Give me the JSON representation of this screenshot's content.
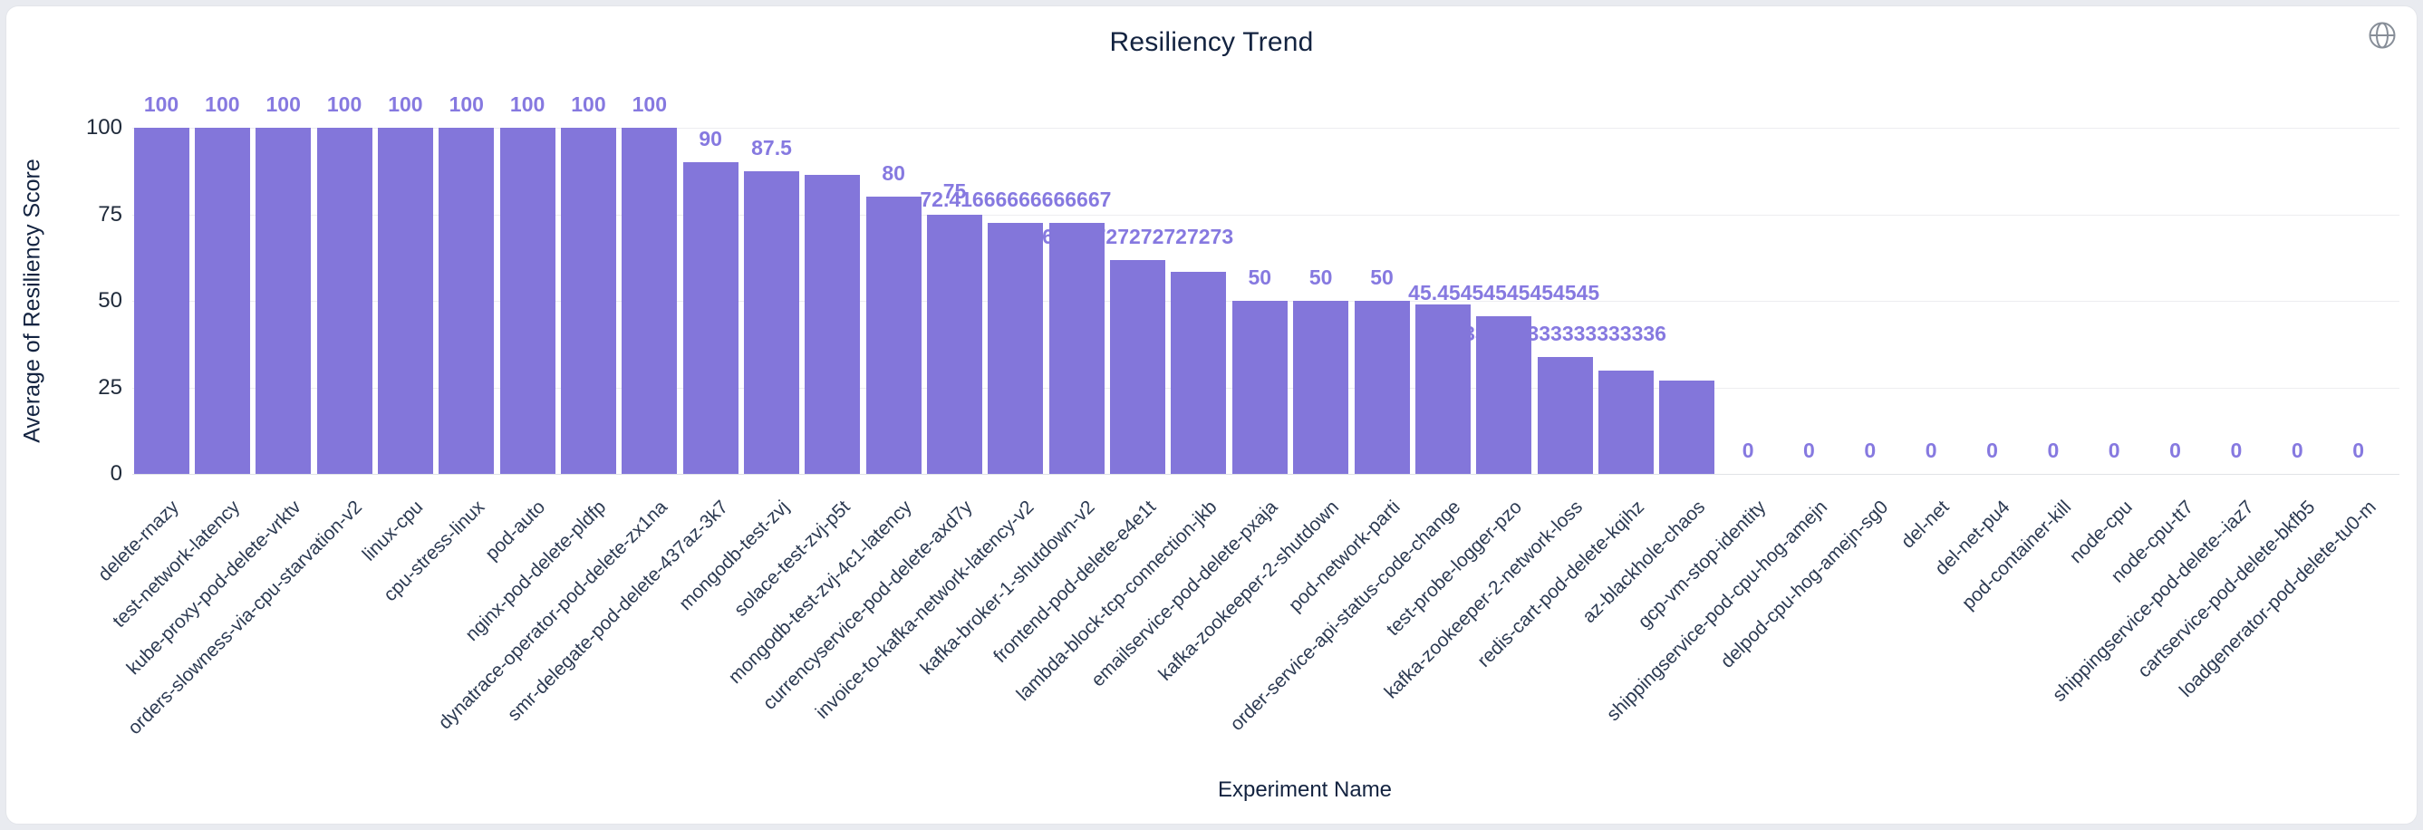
{
  "header": {
    "title": "Resiliency Trend"
  },
  "icons": {
    "globe": "globe-icon"
  },
  "chart_data": {
    "type": "bar",
    "title": "Resiliency Trend",
    "xlabel": "Experiment Name",
    "ylabel": "Average of Resiliency Score",
    "ylim": [
      0,
      100
    ],
    "y_ticks": [
      100,
      75,
      50,
      25,
      0
    ],
    "grid": true,
    "legend": "none",
    "bar_color": "#8376da",
    "value_label_color": "#8679e0",
    "categories": [
      "delete-rnazy",
      "test-network-latency",
      "kube-proxy-pod-delete-vrktv",
      "orders-slowness-via-cpu-starvation-v2",
      "linux-cpu",
      "cpu-stress-linux",
      "pod-auto",
      "nginx-pod-delete-pldfp",
      "dynatrace-operator-pod-delete-zx1na",
      "smr-delegate-pod-delete-437az-3k7",
      "mongodb-test-zvj",
      "solace-test-zvj-p5t",
      "mongodb-test-zvj-4c1-latency",
      "currencyservice-pod-delete-axd7y",
      "invoice-to-kafka-network-latency-v2",
      "kafka-broker-1-shutdown-v2",
      "frontend-pod-delete-e4e1t",
      "lambda-block-tcp-connection-jkb",
      "emailservice-pod-delete-pxaja",
      "kafka-zookeeper-2-shutdown",
      "pod-network-parti",
      "order-service-api-status-code-change",
      "test-probe-logger-pzo",
      "kafka-zookeeper-2-network-loss",
      "redis-cart-pod-delete-kqihz",
      "az-blackhole-chaos",
      "gcp-vm-stop-identity",
      "shippingservice-pod-cpu-hog-amejn",
      "delpod-cpu-hog-amejn-sg0",
      "del-net",
      "del-net-pu4",
      "pod-container-kill",
      "node-cpu",
      "node-cpu-tt7",
      "shippingservice-pod-delete--iaz7",
      "cartservice-pod-delete-bkfb5",
      "loadgenerator-pod-delete-tu0-m"
    ],
    "values": [
      100,
      100,
      100,
      100,
      100,
      100,
      100,
      100,
      100,
      90,
      87.5,
      86.4,
      80,
      75,
      72.41666666666667,
      72.5,
      61.72727272727273,
      58.3,
      50,
      50,
      50,
      49,
      45.45454545454545,
      33.833333333333336,
      29.8,
      26.9,
      0,
      0,
      0,
      0,
      0,
      0,
      0,
      0,
      0,
      0,
      0
    ],
    "bar_labels": [
      "100",
      "100",
      "100",
      "100",
      "100",
      "100",
      "100",
      "100",
      "100",
      "90",
      "87.5",
      null,
      "80",
      "75",
      "72.41666666666667",
      null,
      "61.72727272727273",
      null,
      "50",
      "50",
      "50",
      null,
      "45.45454545454545",
      "33.833333333333336",
      null,
      null,
      "0",
      "0",
      "0",
      "0",
      "0",
      "0",
      "0",
      "0",
      "0",
      "0",
      "0"
    ]
  }
}
